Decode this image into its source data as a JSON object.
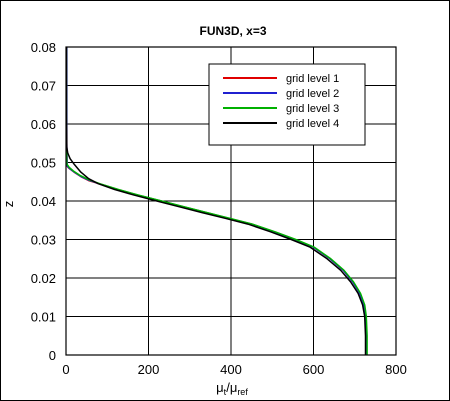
{
  "chart_data": {
    "type": "line",
    "title": "FUN3D, x=3",
    "xlabel": {
      "main1": "μ",
      "sub1": "t",
      "slash": "/",
      "main2": "μ",
      "sub2": "ref"
    },
    "ylabel": "z",
    "xlim": [
      0,
      800
    ],
    "ylim": [
      0,
      0.08
    ],
    "xticks": [
      0,
      200,
      400,
      600,
      800
    ],
    "yticks": [
      0,
      0.01,
      0.02,
      0.03,
      0.04,
      0.05,
      0.06,
      0.07,
      0.08
    ],
    "xtick_labels": [
      "0",
      "200",
      "400",
      "600",
      "800"
    ],
    "ytick_labels": [
      "0",
      "0.01",
      "0.02",
      "0.03",
      "0.04",
      "0.05",
      "0.06",
      "0.07",
      "0.08"
    ],
    "grid": true,
    "legend": "top-right",
    "series": [
      {
        "name": "grid level 1",
        "color": "#e00000",
        "x": [
          728,
          728,
          726,
          722,
          712,
          695,
          672,
          640,
          600,
          555,
          505,
          450,
          395,
          340,
          285,
          230,
          175,
          125,
          80,
          55,
          38,
          22,
          12,
          6,
          3,
          2,
          2
        ],
        "y": [
          0.0,
          0.005,
          0.01,
          0.013,
          0.016,
          0.019,
          0.022,
          0.025,
          0.028,
          0.03,
          0.032,
          0.034,
          0.0355,
          0.037,
          0.0385,
          0.04,
          0.0415,
          0.043,
          0.0445,
          0.0453,
          0.0462,
          0.0473,
          0.0481,
          0.0486,
          0.049,
          0.053,
          0.08
        ]
      },
      {
        "name": "grid level 2",
        "color": "#2020d0",
        "x": [
          728,
          728,
          726,
          722,
          712,
          695,
          672,
          640,
          600,
          555,
          505,
          450,
          395,
          340,
          285,
          230,
          175,
          125,
          80,
          55,
          36,
          20,
          10,
          5,
          3,
          2,
          2
        ],
        "y": [
          0.0,
          0.005,
          0.01,
          0.013,
          0.016,
          0.019,
          0.022,
          0.025,
          0.028,
          0.03,
          0.032,
          0.034,
          0.0355,
          0.037,
          0.0385,
          0.04,
          0.0415,
          0.043,
          0.0445,
          0.0454,
          0.0464,
          0.0475,
          0.0483,
          0.0488,
          0.0492,
          0.055,
          0.08
        ]
      },
      {
        "name": "grid level 3",
        "color": "#00b000",
        "x": [
          730,
          730,
          728,
          724,
          714,
          697,
          674,
          642,
          602,
          557,
          507,
          452,
          397,
          342,
          287,
          232,
          177,
          127,
          82,
          56,
          35,
          18,
          8,
          4,
          2,
          1,
          1
        ],
        "y": [
          0.0,
          0.005,
          0.01,
          0.013,
          0.016,
          0.019,
          0.022,
          0.025,
          0.028,
          0.03,
          0.032,
          0.034,
          0.0355,
          0.037,
          0.0385,
          0.04,
          0.0415,
          0.043,
          0.0445,
          0.0455,
          0.0466,
          0.0478,
          0.0487,
          0.0493,
          0.0497,
          0.057,
          0.08
        ]
      },
      {
        "name": "grid level 4",
        "color": "#000000",
        "x": [
          726,
          726,
          724,
          719,
          708,
          690,
          666,
          633,
          592,
          546,
          496,
          441,
          386,
          330,
          275,
          220,
          166,
          118,
          78,
          55,
          36,
          20,
          10,
          4,
          2,
          1,
          1
        ],
        "y": [
          0.0,
          0.005,
          0.01,
          0.013,
          0.016,
          0.019,
          0.022,
          0.025,
          0.028,
          0.03,
          0.032,
          0.034,
          0.0355,
          0.037,
          0.0385,
          0.04,
          0.0415,
          0.043,
          0.0445,
          0.0458,
          0.0475,
          0.0495,
          0.051,
          0.0525,
          0.054,
          0.062,
          0.08
        ]
      }
    ]
  }
}
